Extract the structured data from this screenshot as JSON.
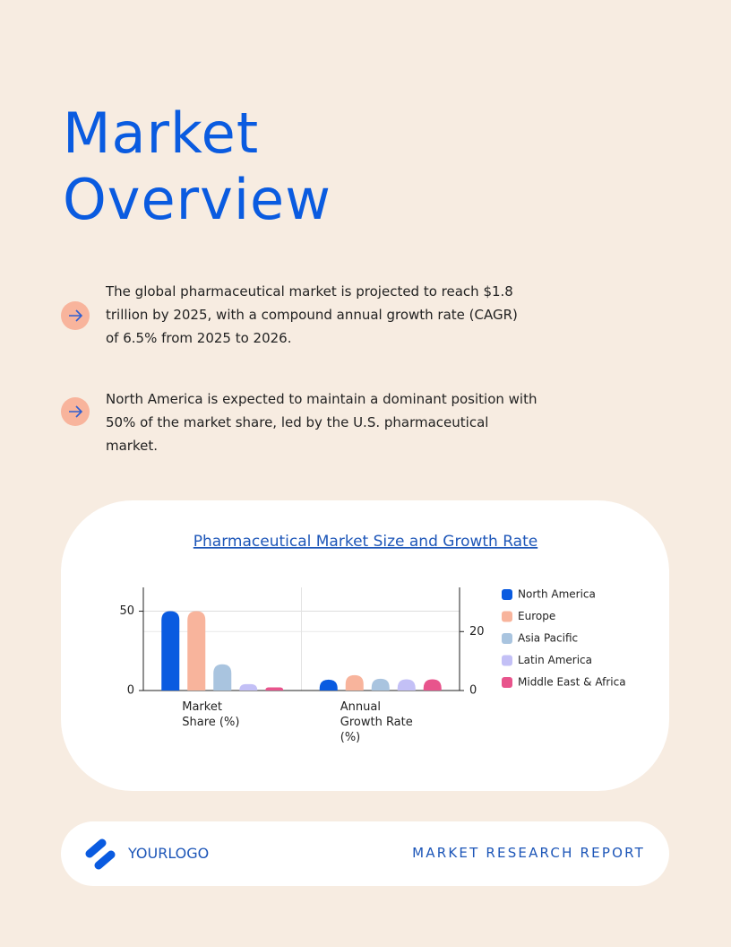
{
  "header": {
    "title": "Market Overview"
  },
  "bullets": [
    "The global pharmaceutical market is projected to reach $1.8 trillion by 2025, with a compound annual growth rate (CAGR) of 6.5% from 2025 to 2026.",
    "North America is expected to maintain a dominant position with 50% of the market share, led by the U.S. pharmaceutical market."
  ],
  "chart_data": {
    "type": "bar",
    "title": "Pharmaceutical Market Size and Growth Rate",
    "categories": [
      "Market Share (%)",
      "Annual Growth Rate (%)"
    ],
    "category_axes": [
      "y",
      "y2"
    ],
    "series": [
      {
        "name": "North America",
        "color": "#0a5be0",
        "values": [
          50,
          3.7
        ]
      },
      {
        "name": "Europe",
        "color": "#f8b49c",
        "values": [
          50,
          5.2
        ]
      },
      {
        "name": "Asia Pacific",
        "color": "#a9c4df",
        "values": [
          16.5,
          4
        ]
      },
      {
        "name": "Latin America",
        "color": "#c3c0f6",
        "values": [
          4,
          3.8
        ]
      },
      {
        "name": "Middle East & Africa",
        "color": "#e8548c",
        "values": [
          2,
          3.8
        ]
      }
    ],
    "ylim": [
      0,
      65
    ],
    "yticks": [
      0,
      50
    ],
    "y2lim": [
      0,
      35
    ],
    "y2ticks": [
      0,
      20
    ],
    "grid": true,
    "legend": "right"
  },
  "footer": {
    "logo": "YOURLOGO",
    "report": "MARKET RESEARCH REPORT"
  }
}
